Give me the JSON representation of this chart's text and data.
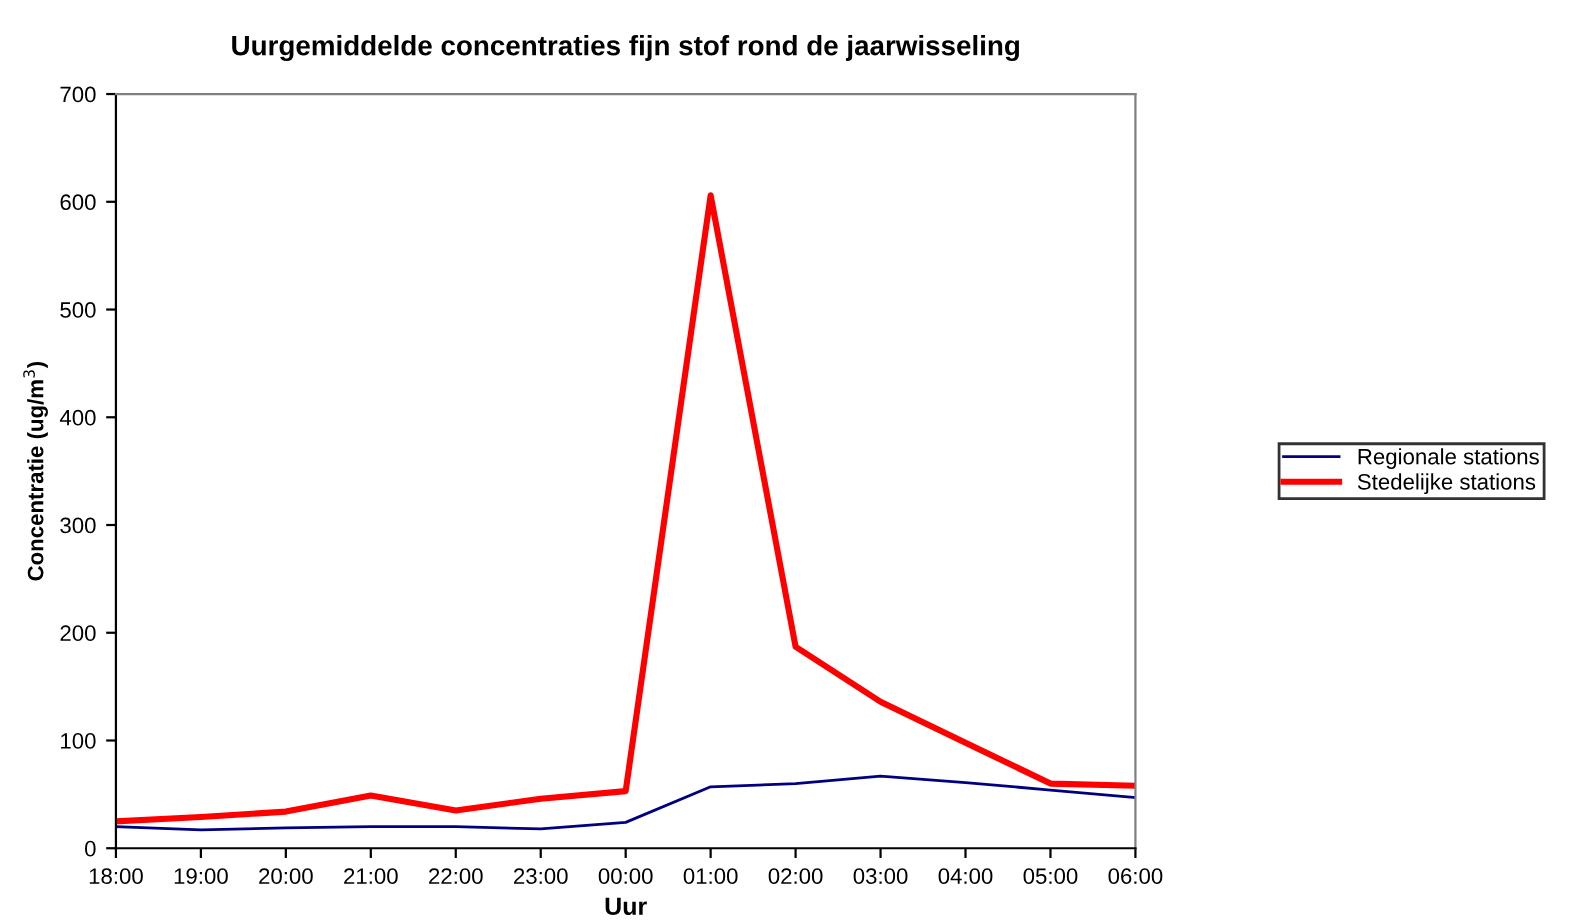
{
  "chart_data": {
    "type": "line",
    "title": "Uurgemiddelde concentraties fijn stof rond de jaarwisseling",
    "xlabel": "Uur",
    "ylabel": "Concentratie (ug/m$^{3}$)",
    "categories": [
      "18:00",
      "19:00",
      "20:00",
      "21:00",
      "22:00",
      "23:00",
      "00:00",
      "01:00",
      "02:00",
      "03:00",
      "04:00",
      "05:00",
      "06:00"
    ],
    "series": [
      {
        "name": "Regionale stations",
        "color": "#000080",
        "values": [
          20,
          17,
          19,
          20,
          20,
          18,
          24,
          57,
          60,
          67,
          61,
          54,
          47
        ]
      },
      {
        "name": "Stedelijke stations",
        "color": "#ff0000",
        "values": [
          25,
          29,
          34,
          49,
          35,
          46,
          53,
          606,
          187,
          136,
          98,
          60,
          58
        ]
      }
    ],
    "ylim": [
      0,
      700
    ],
    "yticks": [
      0,
      100,
      200,
      300,
      400,
      500,
      600,
      700
    ],
    "grid": false,
    "legend": "right",
    "marker": "none",
    "line_style": "solid"
  }
}
